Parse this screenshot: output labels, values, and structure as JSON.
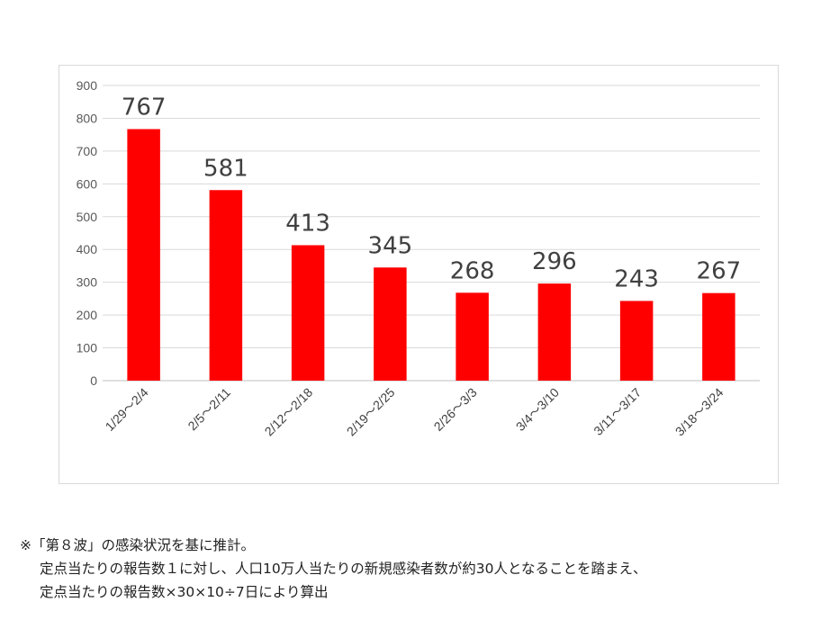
{
  "chart_data": {
    "type": "bar",
    "categories": [
      "1/29～2/4",
      "2/5～2/11",
      "2/12～2/18",
      "2/19～2/25",
      "2/26～3/3",
      "3/4～3/10",
      "3/11～3/17",
      "3/18～3/24"
    ],
    "values": [
      767,
      581,
      413,
      345,
      268,
      296,
      243,
      267
    ],
    "ylim": [
      0,
      900
    ],
    "yticks": [
      0,
      100,
      200,
      300,
      400,
      500,
      600,
      700,
      800,
      900
    ],
    "grid": true,
    "legend": "none",
    "bar_color": "#ff0000",
    "data_labels": true
  },
  "footnote": {
    "line1": "※「第８波」の感染状況を基に推計。",
    "line2": "定点当たりの報告数１に対し、人口10万人当たりの新規感染者数が約30人となることを踏まえ、",
    "line3": "定点当たりの報告数×30×10÷7日により算出"
  }
}
